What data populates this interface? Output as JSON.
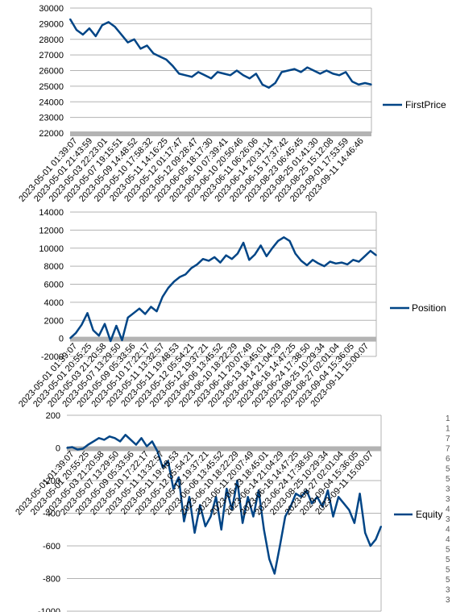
{
  "chart_data": [
    {
      "type": "line",
      "ylim": [
        22000,
        30000
      ],
      "yticks": [
        22000,
        23000,
        24000,
        25000,
        26000,
        27000,
        28000,
        29000,
        30000
      ],
      "xticks": [
        "2023-05-01 01:39:07",
        "2023-05-01 21:43:59",
        "2023-05-03 22:23:01",
        "2023-05-07 19:15:51",
        "2023-05-09 14:48:52",
        "2023-05-10 17:58:32",
        "2023-05-11 14:16:25",
        "2023-05-12 01:17:47",
        "2023-05-12 09:28:47",
        "2023-06-05 18:17:30",
        "2023-06-10 07:39:41",
        "2023-06-10 20:50:46",
        "2023-06-11 06:26:06",
        "2023-06-14 20:31:14",
        "2023-06-15 17:37:42",
        "2023-08-23 06:45:45",
        "2023-08-25 01:41:30",
        "2023-08-25 15:12:08",
        "2023-09-01 17:53:59",
        "2023-09-11 14:46:46"
      ],
      "series": [
        {
          "name": "FirstPrice",
          "values": [
            29300,
            28600,
            28300,
            28700,
            28200,
            28900,
            29100,
            28800,
            28300,
            27800,
            28000,
            27400,
            27600,
            27100,
            26900,
            26700,
            26300,
            25800,
            25700,
            25600,
            25900,
            25700,
            25500,
            25900,
            25800,
            25700,
            26000,
            25700,
            25500,
            25800,
            25100,
            24900,
            25200,
            25900,
            26000,
            26100,
            25900,
            26200,
            26000,
            25800,
            26000,
            25800,
            25700,
            25900,
            25300,
            25100,
            25200,
            25100
          ]
        }
      ]
    },
    {
      "type": "line",
      "ylim": [
        -2000,
        14000
      ],
      "yticks": [
        -2000,
        0,
        2000,
        4000,
        6000,
        8000,
        10000,
        12000,
        14000
      ],
      "xticks": [
        "2023-05-01 01:39:07",
        "2023-05-01 20:55:25",
        "2023-05-03 21:20:58",
        "2023-05-07 13:29:50",
        "2023-05-09 05:33:56",
        "2023-05-10 17:22:17",
        "2023-05-11 13:32:57",
        "2023-05-11 19:48:53",
        "2023-05-12 05:54:21",
        "2023-05-12 19:37:21",
        "2023-06-06 13:45:52",
        "2023-06-10 18:22:29",
        "2023-06-11 20:07:49",
        "2023-06-13 18:45:01",
        "2023-06-14 21:04:29",
        "2023-06-16 14:47:25",
        "2023-06-24 17:38:50",
        "2023-08-25 10:29:34",
        "2023-08-27 02:01:04",
        "2023-09-04 15:36:05",
        "2023-09-11 15:00:07"
      ],
      "series": [
        {
          "name": "Position",
          "values": [
            0,
            600,
            1500,
            2800,
            900,
            300,
            1600,
            -300,
            1400,
            -200,
            2300,
            2800,
            3300,
            2700,
            3500,
            3000,
            4600,
            5600,
            6300,
            6800,
            7100,
            7800,
            8200,
            8800,
            8600,
            9000,
            8400,
            9200,
            8800,
            9400,
            10600,
            8700,
            9300,
            10300,
            9100,
            10000,
            10800,
            11200,
            10800,
            9400,
            8600,
            8100,
            8700,
            8300,
            8000,
            8500,
            8300,
            8400,
            8200,
            8700,
            8500,
            9100,
            9700,
            9200
          ]
        }
      ]
    },
    {
      "type": "line",
      "ylim": [
        -1000,
        200
      ],
      "yticks": [
        -1000,
        -800,
        -600,
        -400,
        -200,
        0,
        200
      ],
      "xticks": [
        "2023-05-01 01:39:07",
        "2023-05-01 20:55:25",
        "2023-05-03 21:20:58",
        "2023-05-07 13:29:50",
        "2023-05-09 05:33:56",
        "2023-05-10 17:22:17",
        "2023-05-11 13:32:57",
        "2023-05-11 19:48:53",
        "2023-05-12 05:54:21",
        "2023-05-12 19:37:21",
        "2023-06-06 13:45:52",
        "2023-06-10 18:22:29",
        "2023-06-11 20:07:49",
        "2023-06-13 18:45:01",
        "2023-06-14 21:04:29",
        "2023-06-16 14:47:25",
        "2023-06-24 17:38:50",
        "2023-08-25 10:29:34",
        "2023-08-27 02:01:04",
        "2023-09-04 15:36:05",
        "2023-09-11 15:00:07"
      ],
      "series": [
        {
          "name": "Equity",
          "values": [
            0,
            5,
            -10,
            -5,
            20,
            40,
            60,
            50,
            70,
            60,
            40,
            80,
            50,
            20,
            60,
            10,
            40,
            -20,
            -120,
            -80,
            -250,
            -180,
            -450,
            -300,
            -520,
            -350,
            -480,
            -420,
            -300,
            -500,
            -250,
            -380,
            -200,
            -460,
            -300,
            -420,
            -260,
            -500,
            -680,
            -770,
            -600,
            -420,
            -360,
            -280,
            -300,
            -260,
            -340,
            -300,
            -360,
            -260,
            -420,
            -300,
            -340,
            -380,
            -460,
            -280,
            -520,
            -600,
            -560,
            -480
          ]
        }
      ]
    }
  ],
  "colors": {
    "line": "#004586",
    "grid": "#b3b3b3",
    "xaxis_band": "#b3b3b3"
  },
  "right_edge_glyphs": [
    "1",
    "1",
    "7",
    "7",
    "6",
    "5",
    "5",
    "3",
    "3",
    "4",
    "3",
    "4",
    "4",
    "5",
    "5",
    "5",
    "5",
    "3",
    "3"
  ]
}
